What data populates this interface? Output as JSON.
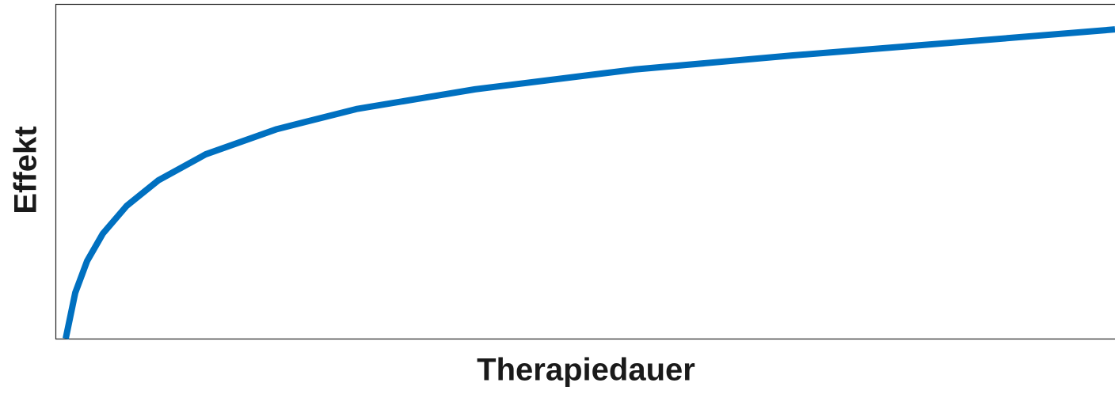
{
  "chart_data": {
    "type": "line",
    "x_label": "Therapiedauer",
    "y_label": "Effekt",
    "x": [
      0.97,
      1.87,
      2.99,
      4.48,
      6.73,
      9.72,
      14.2,
      20.9,
      28.4,
      39.6,
      54.6,
      69.5,
      84.5,
      100
    ],
    "series": [
      {
        "color": "#0070c0",
        "values": [
          0,
          13.7,
          23.2,
          31.4,
          39.7,
          47.3,
          55.1,
          62.6,
          68.6,
          74.5,
          80.4,
          84.6,
          88.4,
          92.4
        ]
      }
    ],
    "xlim": [
      0,
      100
    ],
    "ylim": [
      0,
      100
    ]
  }
}
